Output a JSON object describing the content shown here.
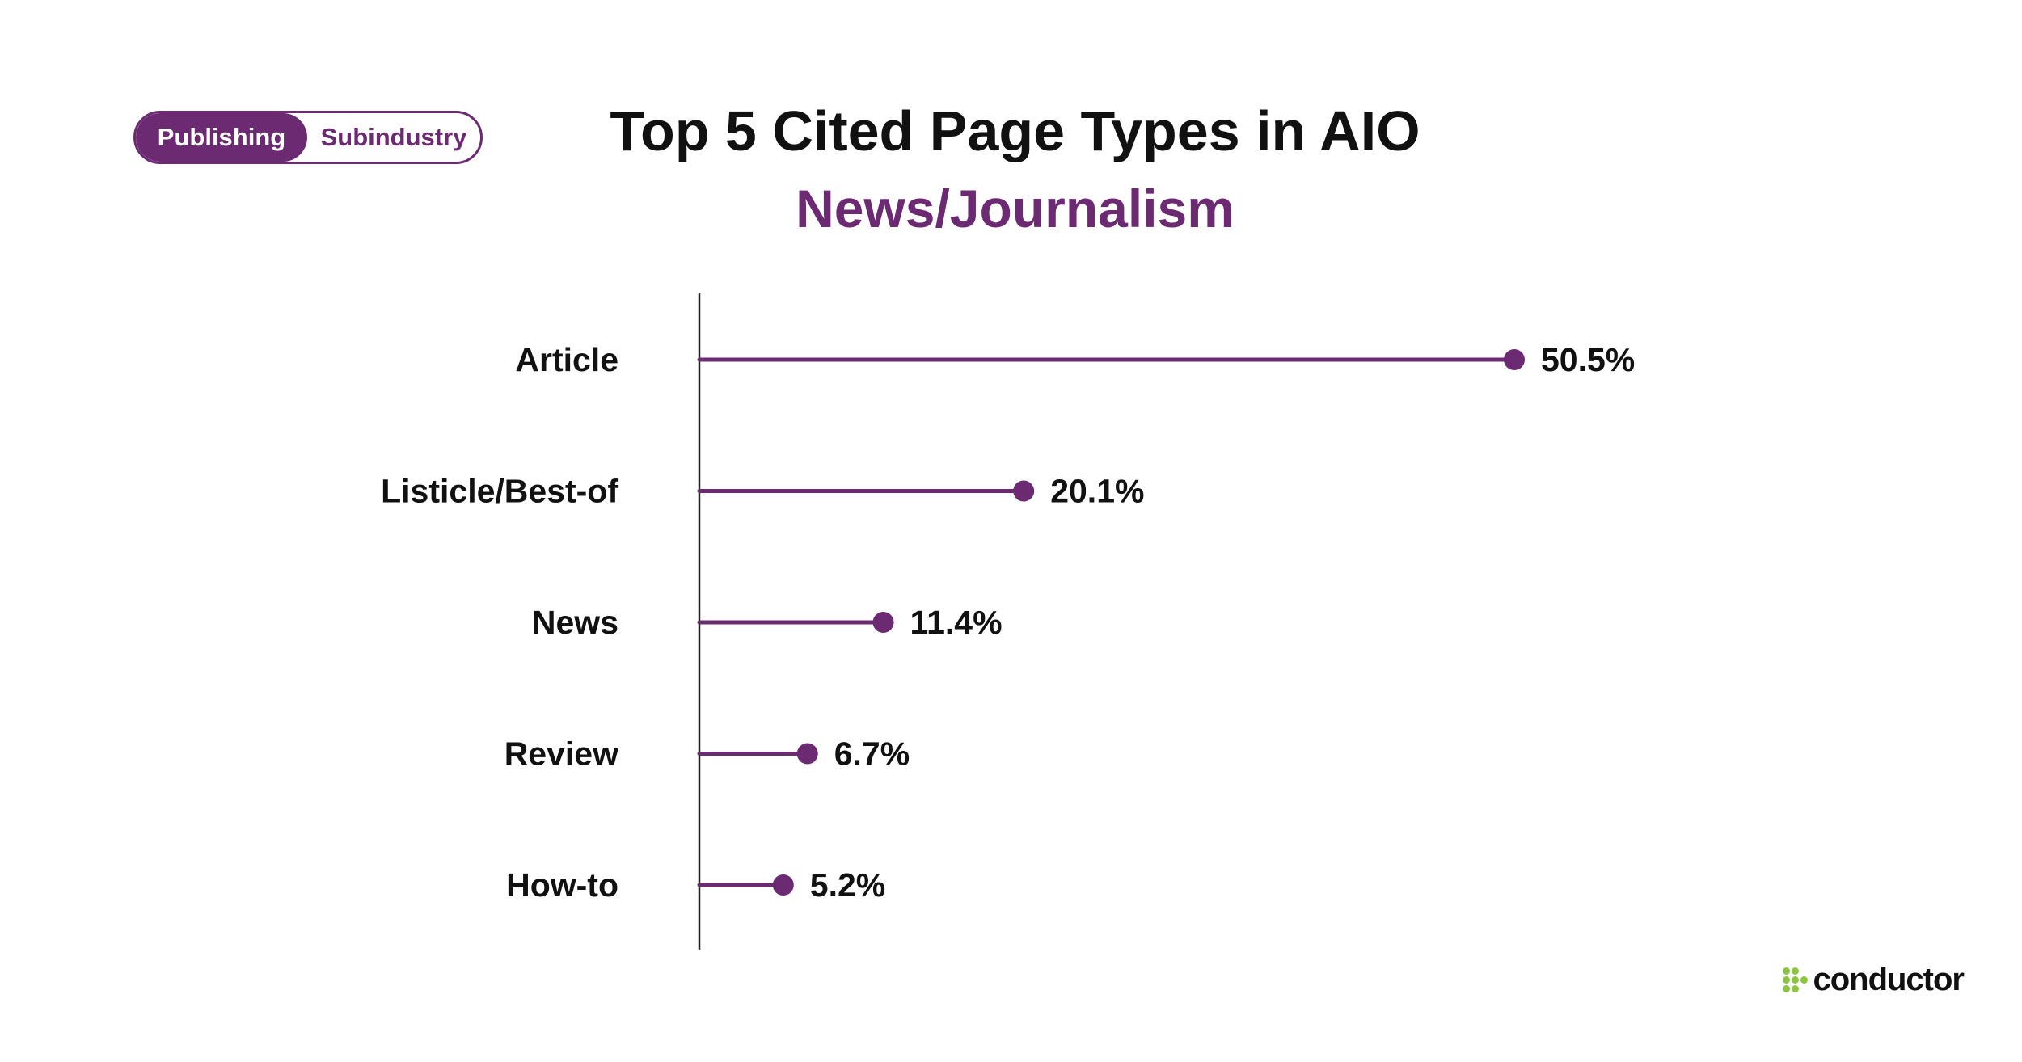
{
  "toggle": {
    "active_label": "Publishing",
    "inactive_label": "Subindustry"
  },
  "brand": {
    "accent": "#6b2a72",
    "logo_accent": "#8cc63f",
    "logo_icon": "conductor-dots-icon",
    "logo_text": "conductor"
  },
  "chart_data": {
    "type": "lollipop",
    "title": "Top 5 Cited Page Types in AIO",
    "subtitle": "News/Journalism",
    "categories": [
      "Article",
      "Listicle/Best-of",
      "News",
      "Review",
      "How-to"
    ],
    "values": [
      50.5,
      20.1,
      11.4,
      6.7,
      5.2
    ],
    "value_labels": [
      "50.5%",
      "20.1%",
      "11.4%",
      "6.7%",
      "5.2%"
    ],
    "xlabel": "",
    "ylabel": "",
    "xlim": [
      0,
      50.5
    ],
    "grid": false,
    "legend": "none",
    "color": "#6b2a72"
  }
}
